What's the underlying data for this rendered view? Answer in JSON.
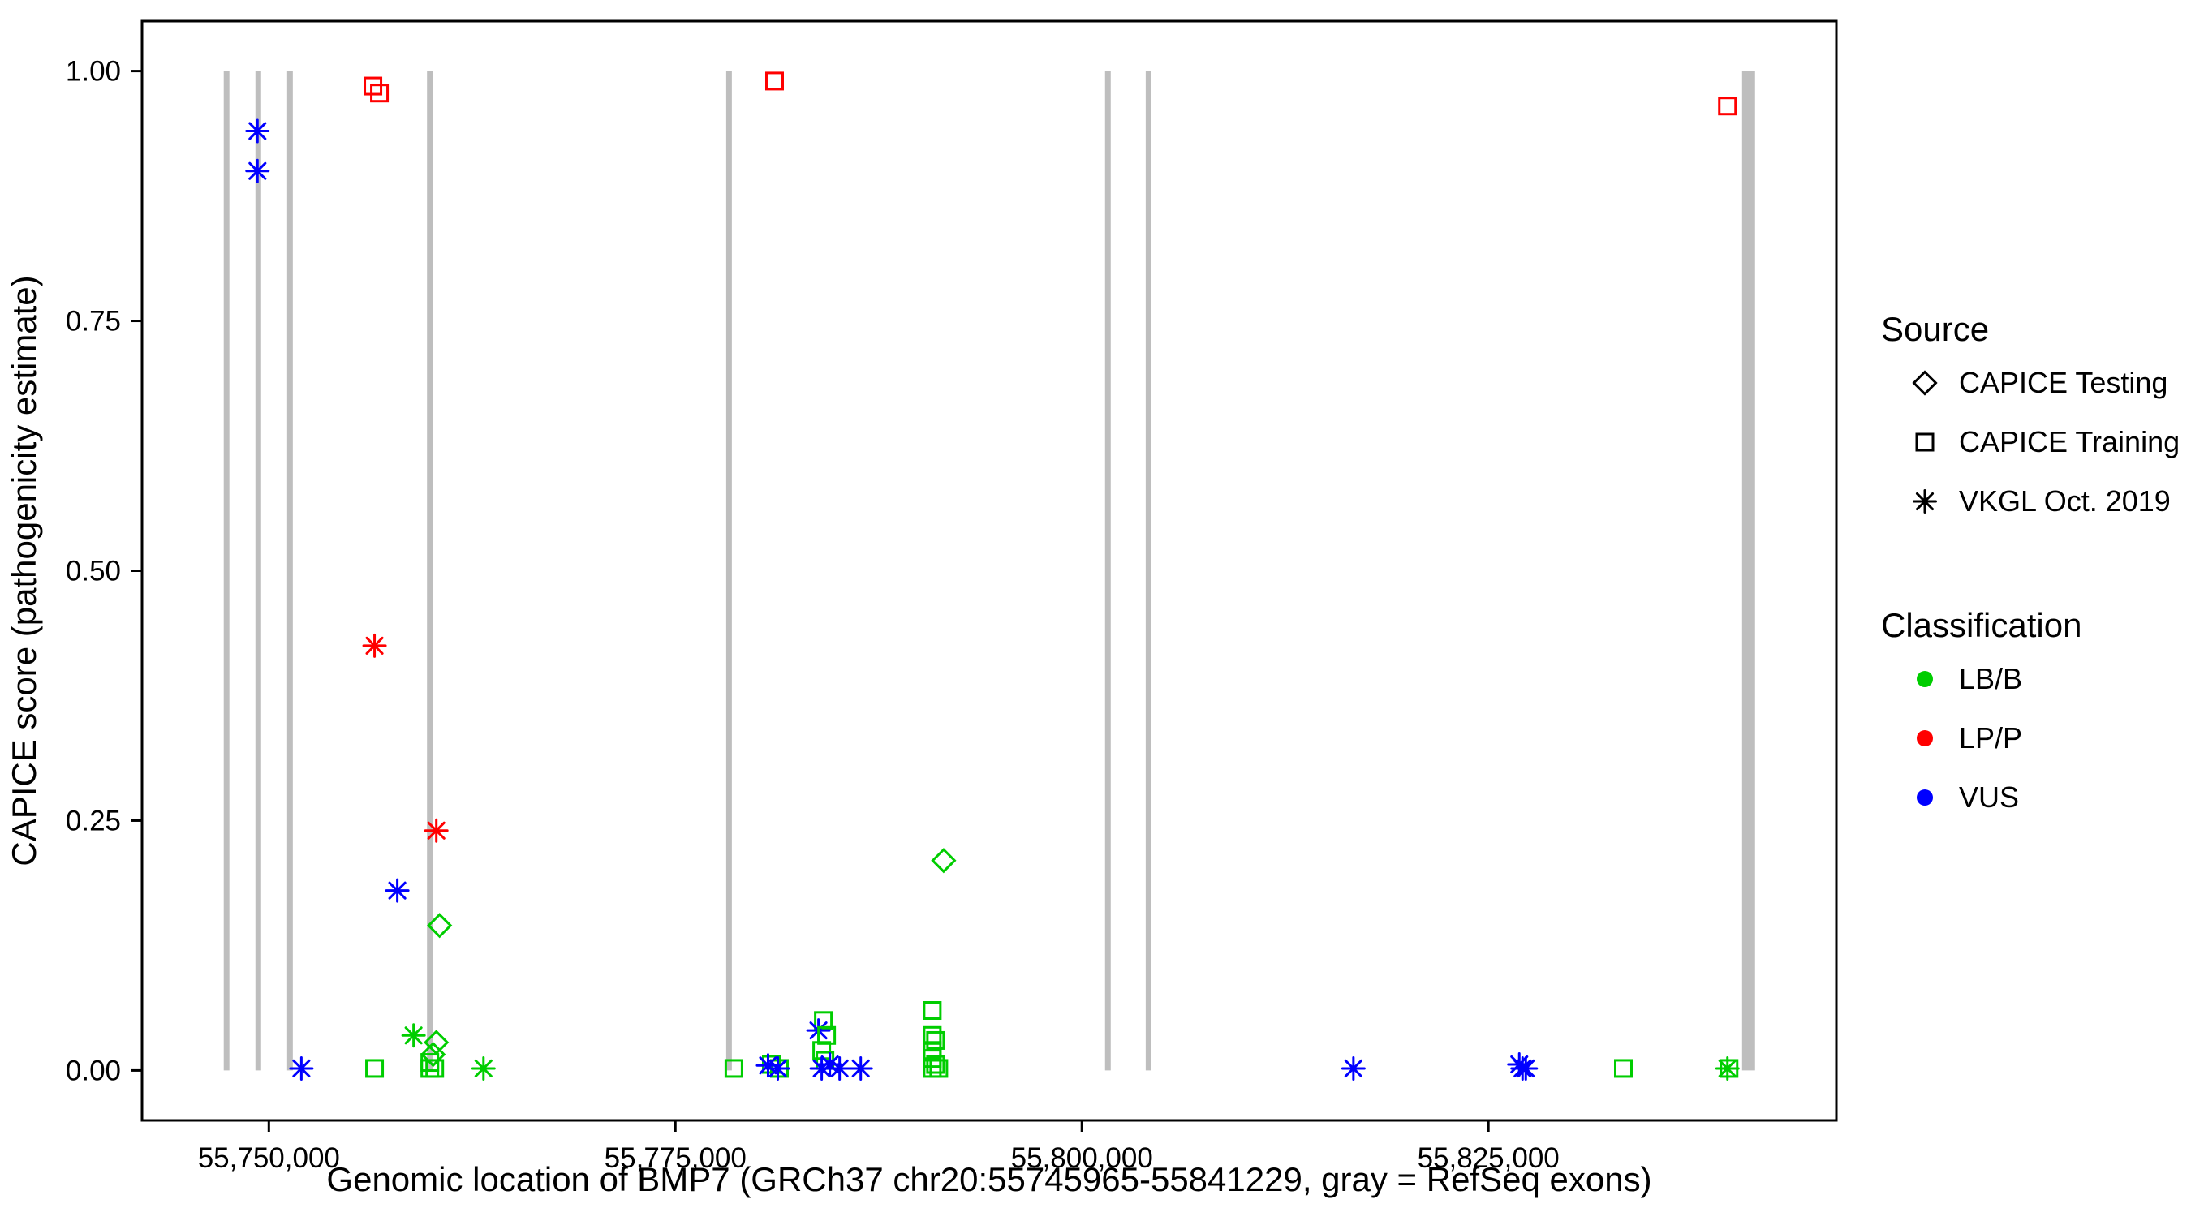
{
  "figure": {
    "background": "#FFFFFF",
    "panel_border_color": "#000000"
  },
  "chart_data": {
    "type": "scatter",
    "title": "",
    "xlabel": "Genomic location of BMP7 (GRCh37 chr20:55745965-55841229, gray = RefSeq exons)",
    "ylabel": "CAPICE score (pathogenicity estimate)",
    "x_domain": [
      55742200,
      55846400
    ],
    "y_domain": [
      -0.05,
      1.05
    ],
    "grid": "off",
    "x_ticks": [
      {
        "value": 55750000,
        "label": "55,750,000"
      },
      {
        "value": 55775000,
        "label": "55,775,000"
      },
      {
        "value": 55800000,
        "label": "55,800,000"
      },
      {
        "value": 55825000,
        "label": "55,825,000"
      }
    ],
    "y_ticks": [
      {
        "value": 0.0,
        "label": "0.00"
      },
      {
        "value": 0.25,
        "label": "0.25"
      },
      {
        "value": 0.5,
        "label": "0.50"
      },
      {
        "value": 0.75,
        "label": "0.75"
      },
      {
        "value": 1.0,
        "label": "1.00"
      }
    ],
    "exon_color": "#BEBEBE",
    "exon_y_range": [
      0,
      1
    ],
    "exons": [
      {
        "pos": 55747400,
        "stroke_px": 7
      },
      {
        "pos": 55749350,
        "stroke_px": 7
      },
      {
        "pos": 55751300,
        "stroke_px": 7
      },
      {
        "pos": 55759900,
        "stroke_px": 7
      },
      {
        "pos": 55778300,
        "stroke_px": 7
      },
      {
        "pos": 55801600,
        "stroke_px": 7
      },
      {
        "pos": 55804100,
        "stroke_px": 7
      },
      {
        "pos": 55841000,
        "stroke_px": 16
      }
    ],
    "class_colors": {
      "LB/B": "#00CD00",
      "LP/P": "#FF0000",
      "VUS": "#0000FF"
    },
    "shape_by_source": {
      "CAPICE Testing": "diamond",
      "CAPICE Training": "square",
      "VKGL Oct. 2019": "asterisk"
    },
    "points_columns": [
      "genomic_position",
      "capice_score",
      "source",
      "classification"
    ],
    "points": [
      [
        55749300,
        0.94,
        "VKGL Oct. 2019",
        "VUS"
      ],
      [
        55749300,
        0.9,
        "VKGL Oct. 2019",
        "VUS"
      ],
      [
        55752000,
        0.002,
        "VKGL Oct. 2019",
        "VUS"
      ],
      [
        55757900,
        0.18,
        "VKGL Oct. 2019",
        "VUS"
      ],
      [
        55756400,
        0.985,
        "CAPICE Training",
        "LP/P"
      ],
      [
        55756800,
        0.978,
        "CAPICE Training",
        "LP/P"
      ],
      [
        55756500,
        0.425,
        "VKGL Oct. 2019",
        "LP/P"
      ],
      [
        55760300,
        0.24,
        "VKGL Oct. 2019",
        "LP/P"
      ],
      [
        55760500,
        0.145,
        "CAPICE Testing",
        "LB/B"
      ],
      [
        55758900,
        0.035,
        "VKGL Oct. 2019",
        "LB/B"
      ],
      [
        55760300,
        0.028,
        "CAPICE Testing",
        "LB/B"
      ],
      [
        55760100,
        0.016,
        "CAPICE Testing",
        "LB/B"
      ],
      [
        55759900,
        0.008,
        "CAPICE Training",
        "LB/B"
      ],
      [
        55759900,
        0.002,
        "CAPICE Training",
        "LB/B"
      ],
      [
        55760200,
        0.002,
        "CAPICE Training",
        "LB/B"
      ],
      [
        55756500,
        0.002,
        "CAPICE Training",
        "LB/B"
      ],
      [
        55763200,
        0.002,
        "VKGL Oct. 2019",
        "LB/B"
      ],
      [
        55781100,
        0.99,
        "CAPICE Training",
        "LP/P"
      ],
      [
        55778600,
        0.002,
        "CAPICE Training",
        "LB/B"
      ],
      [
        55780900,
        0.006,
        "CAPICE Training",
        "LB/B"
      ],
      [
        55781400,
        0.002,
        "CAPICE Training",
        "LB/B"
      ],
      [
        55780700,
        0.005,
        "VKGL Oct. 2019",
        "VUS"
      ],
      [
        55781300,
        0.002,
        "VKGL Oct. 2019",
        "VUS"
      ],
      [
        55784100,
        0.05,
        "CAPICE Training",
        "LB/B"
      ],
      [
        55783800,
        0.04,
        "VKGL Oct. 2019",
        "VUS"
      ],
      [
        55784300,
        0.035,
        "CAPICE Training",
        "LB/B"
      ],
      [
        55784000,
        0.02,
        "CAPICE Training",
        "LB/B"
      ],
      [
        55784200,
        0.01,
        "CAPICE Training",
        "LB/B"
      ],
      [
        55784000,
        0.002,
        "VKGL Oct. 2019",
        "VUS"
      ],
      [
        55784500,
        0.006,
        "VKGL Oct. 2019",
        "VUS"
      ],
      [
        55785100,
        0.002,
        "VKGL Oct. 2019",
        "VUS"
      ],
      [
        55786400,
        0.002,
        "VKGL Oct. 2019",
        "VUS"
      ],
      [
        55791500,
        0.21,
        "CAPICE Testing",
        "LB/B"
      ],
      [
        55790800,
        0.06,
        "CAPICE Training",
        "LB/B"
      ],
      [
        55790800,
        0.035,
        "CAPICE Training",
        "LB/B"
      ],
      [
        55791000,
        0.03,
        "CAPICE Training",
        "LB/B"
      ],
      [
        55790800,
        0.02,
        "CAPICE Training",
        "LB/B"
      ],
      [
        55790800,
        0.012,
        "CAPICE Training",
        "LB/B"
      ],
      [
        55791000,
        0.006,
        "CAPICE Training",
        "LB/B"
      ],
      [
        55790800,
        0.002,
        "CAPICE Training",
        "LB/B"
      ],
      [
        55791200,
        0.002,
        "CAPICE Training",
        "LB/B"
      ],
      [
        55816700,
        0.002,
        "VKGL Oct. 2019",
        "VUS"
      ],
      [
        55826900,
        0.006,
        "VKGL Oct. 2019",
        "VUS"
      ],
      [
        55827100,
        0.002,
        "VKGL Oct. 2019",
        "VUS"
      ],
      [
        55827300,
        0.002,
        "VKGL Oct. 2019",
        "VUS"
      ],
      [
        55833300,
        0.002,
        "CAPICE Training",
        "LB/B"
      ],
      [
        55839700,
        0.965,
        "CAPICE Training",
        "LP/P"
      ],
      [
        55839700,
        0.002,
        "VKGL Oct. 2019",
        "LB/B"
      ],
      [
        55839800,
        0.002,
        "CAPICE Training",
        "LB/B"
      ]
    ],
    "legend": {
      "position": "right",
      "source": {
        "title": "Source",
        "items": [
          {
            "label": "CAPICE Testing",
            "shape": "diamond"
          },
          {
            "label": "CAPICE Training",
            "shape": "square"
          },
          {
            "label": "VKGL Oct. 2019",
            "shape": "asterisk"
          }
        ]
      },
      "classification": {
        "title": "Classification",
        "items": [
          {
            "label": "LB/B",
            "color": "#00CD00"
          },
          {
            "label": "LP/P",
            "color": "#FF0000"
          },
          {
            "label": "VUS",
            "color": "#0000FF"
          }
        ]
      }
    }
  }
}
